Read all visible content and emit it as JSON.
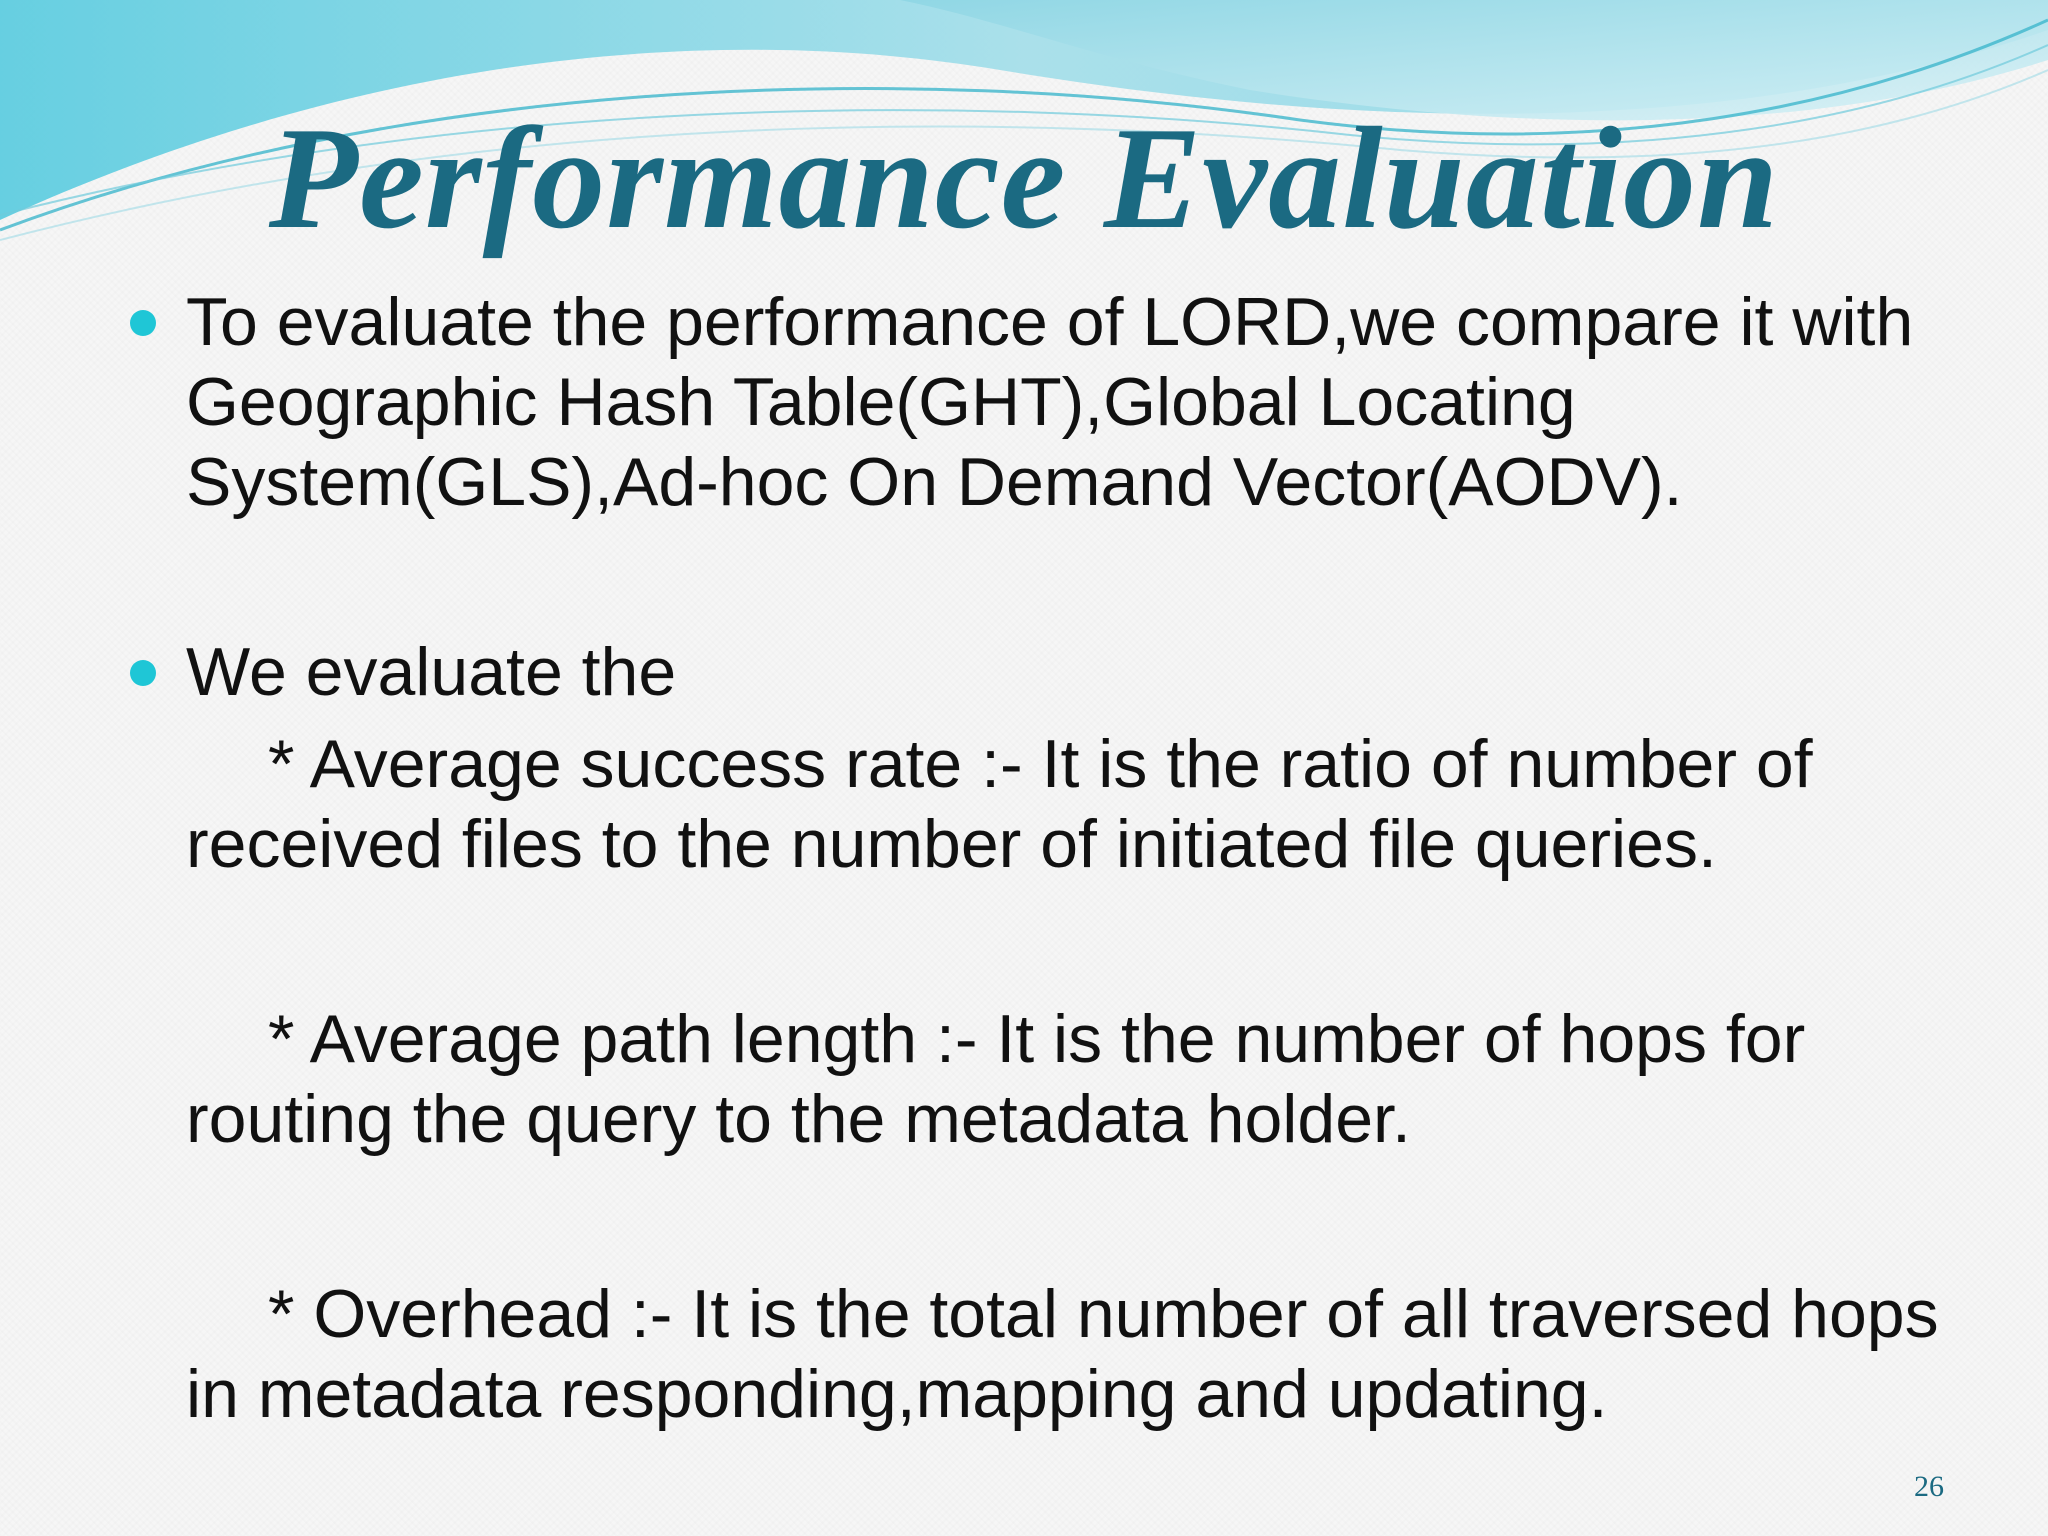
{
  "slide": {
    "title": "Performance Evaluation",
    "bullets": [
      {
        "text": "To evaluate the performance of LORD,we compare it with Geographic Hash Table(GHT),Global Locating System(GLS),Ad-hoc On Demand Vector(AODV)."
      },
      {
        "text": "We evaluate the",
        "sub_items": [
          "* Average success rate :- It is the ratio of number of received files to the number of initiated file queries.",
          "* Average path length :- It is the number of hops for routing the query to the metadata holder.",
          "* Overhead :- It is the total number of all traversed hops in metadata responding,mapping and updating."
        ]
      }
    ],
    "page_number": "26"
  },
  "colors": {
    "title": "#1b6a82",
    "bullet": "#1fc6d6",
    "body_text": "#111111",
    "wave_light": "#bfe8f0",
    "wave_mid": "#7fd2e2",
    "wave_dark": "#3fb6cc"
  }
}
